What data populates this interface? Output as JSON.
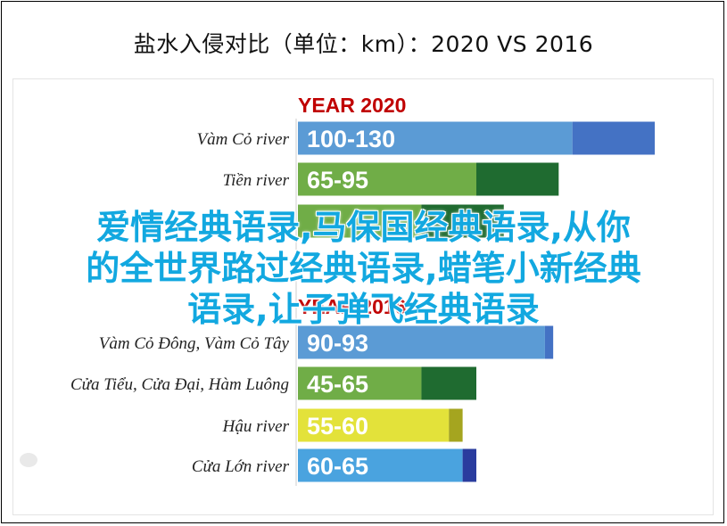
{
  "title": "盐水入侵对比（单位：km）：2020 VS 2016",
  "overlay_text": {
    "line1": "爱情经典语录,马保国经典语录,从你",
    "line2": "的全世界路过经典语录,蜡笔小新经典",
    "line3": "语录,让子弹飞经典语录"
  },
  "colors": {
    "blue": "#5b9bd5",
    "blue_dark": "#4472c4",
    "green": "#70ad47",
    "green_dark": "#1f6b30",
    "yellow": "#e3e23a",
    "yellow_dark": "#a5a51f",
    "cyan": "#4aa3df",
    "navy": "#2a3c9e",
    "red": "#c00000"
  },
  "chart_data": {
    "type": "bar",
    "orientation": "horizontal",
    "groups": [
      {
        "heading": "YEAR 2020",
        "rows": [
          {
            "category": "Vàm Cỏ river",
            "label": "100-130",
            "min": 100,
            "max": 130,
            "color": "blue",
            "cap_color": "blue_dark"
          },
          {
            "category": "Tiền river",
            "label": "65-95",
            "min": 65,
            "max": 95,
            "color": "green",
            "cap_color": "green_dark"
          },
          {
            "category": "",
            "label": "",
            "min": 45,
            "max": 75,
            "color": "green",
            "cap_color": "green_dark"
          }
        ]
      },
      {
        "heading": "YEAR 2016",
        "rows": [
          {
            "category": "Vàm Cỏ Đông, Vàm Cỏ Tây",
            "label": "90-93",
            "min": 90,
            "max": 93,
            "color": "blue",
            "cap_color": "blue_dark"
          },
          {
            "category": "Cửa Tiểu, Cửa Đại, Hàm Luông",
            "label": "45-65",
            "min": 45,
            "max": 65,
            "color": "green",
            "cap_color": "green_dark"
          },
          {
            "category": "Hậu river",
            "label": "55-60",
            "min": 55,
            "max": 60,
            "color": "yellow",
            "cap_color": "yellow_dark"
          },
          {
            "category": "Cửa Lớn river",
            "label": "60-65",
            "min": 60,
            "max": 65,
            "color": "cyan",
            "cap_color": "navy"
          }
        ]
      }
    ],
    "xlim": [
      0,
      130
    ]
  }
}
